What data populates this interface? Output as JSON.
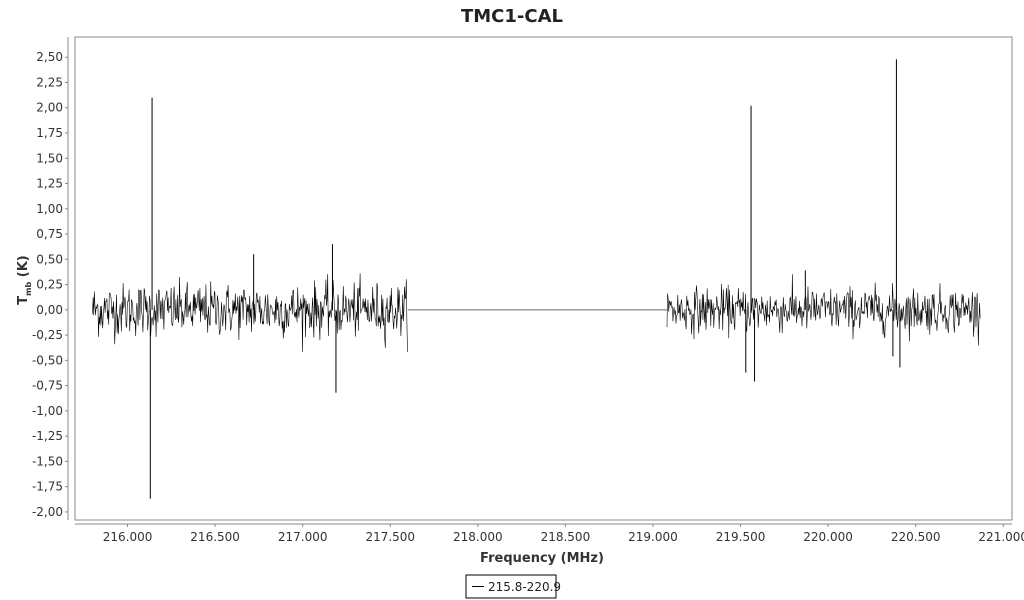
{
  "chart_data": {
    "type": "line",
    "title": "TMC1-CAL",
    "xlabel": "Frequency (MHz)",
    "ylabel_main": "T",
    "ylabel_sub": "mb",
    "ylabel_unit": " (K)",
    "xlim": [
      215.7,
      221.05
    ],
    "ylim": [
      -2.08,
      2.7
    ],
    "x_ticks": [
      216.0,
      216.5,
      217.0,
      217.5,
      218.0,
      218.5,
      219.0,
      219.5,
      220.0,
      220.5,
      221.0
    ],
    "x_tick_labels": [
      "216.000",
      "216.500",
      "217.000",
      "217.500",
      "218.000",
      "218.500",
      "219.000",
      "219.500",
      "220.000",
      "220.500",
      "221.000"
    ],
    "y_ticks": [
      2.5,
      2.25,
      2.0,
      1.75,
      1.5,
      1.25,
      1.0,
      0.75,
      0.5,
      0.25,
      0.0,
      -0.25,
      -0.5,
      -0.75,
      -1.0,
      -1.25,
      -1.5,
      -1.75,
      -2.0
    ],
    "y_tick_labels": [
      "2,50",
      "2,25",
      "2,00",
      "1,75",
      "1,50",
      "1,25",
      "1,00",
      "0,75",
      "0,50",
      "0,25",
      "0,00",
      "-0,25",
      "-0,50",
      "-0,75",
      "-1,00",
      "-1,25",
      "-1,50",
      "-1,75",
      "-2,00"
    ],
    "grid": false,
    "legend_position": "bottom-center",
    "series": [
      {
        "name": "215.8-220.9",
        "color": "#000000",
        "noise_bands": [
          {
            "x_start": 215.8,
            "x_end": 217.6,
            "rms": 0.13
          },
          {
            "x_start": 219.08,
            "x_end": 220.87,
            "rms": 0.11
          }
        ],
        "gap_line": {
          "x_start": 217.6,
          "x_end": 219.08,
          "y": 0.0
        },
        "spikes": [
          {
            "x": 216.14,
            "y": 2.1
          },
          {
            "x": 216.13,
            "y": -1.87
          },
          {
            "x": 217.17,
            "y": 0.65
          },
          {
            "x": 217.19,
            "y": -0.82
          },
          {
            "x": 216.72,
            "y": 0.55
          },
          {
            "x": 219.56,
            "y": 2.02
          },
          {
            "x": 219.53,
            "y": -0.62
          },
          {
            "x": 219.58,
            "y": -0.71
          },
          {
            "x": 220.39,
            "y": 2.48
          },
          {
            "x": 220.41,
            "y": -0.57
          },
          {
            "x": 220.37,
            "y": -0.46
          },
          {
            "x": 219.87,
            "y": 0.39
          }
        ]
      }
    ]
  }
}
